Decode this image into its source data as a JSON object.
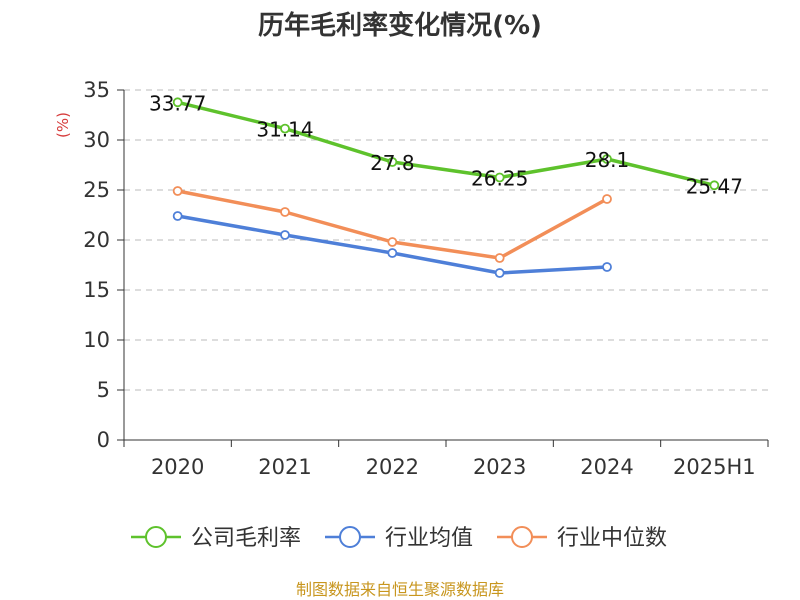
{
  "chart_data": {
    "type": "line",
    "title": "历年毛利率变化情况(%)",
    "ylabel": "(%)",
    "categories": [
      "2020",
      "2021",
      "2022",
      "2023",
      "2024",
      "2025H1"
    ],
    "ylim": [
      0,
      35
    ],
    "yticks": [
      0,
      5,
      10,
      15,
      20,
      25,
      30,
      35
    ],
    "grid": true,
    "legend_position": "bottom",
    "series": [
      {
        "name": "公司毛利率",
        "color": "#5ec22c",
        "values": [
          33.77,
          31.14,
          27.8,
          26.25,
          28.1,
          25.47
        ],
        "labels": [
          "33.77",
          "31.14",
          "27.8",
          "26.25",
          "28.1",
          "25.47"
        ]
      },
      {
        "name": "行业均值",
        "color": "#4e7fd8",
        "values": [
          22.4,
          20.5,
          18.7,
          16.7,
          17.3,
          null
        ]
      },
      {
        "name": "行业中位数",
        "color": "#f28e58",
        "values": [
          24.9,
          22.8,
          19.8,
          18.2,
          24.1,
          null
        ]
      }
    ]
  },
  "source": "制图数据来自恒生聚源数据库"
}
